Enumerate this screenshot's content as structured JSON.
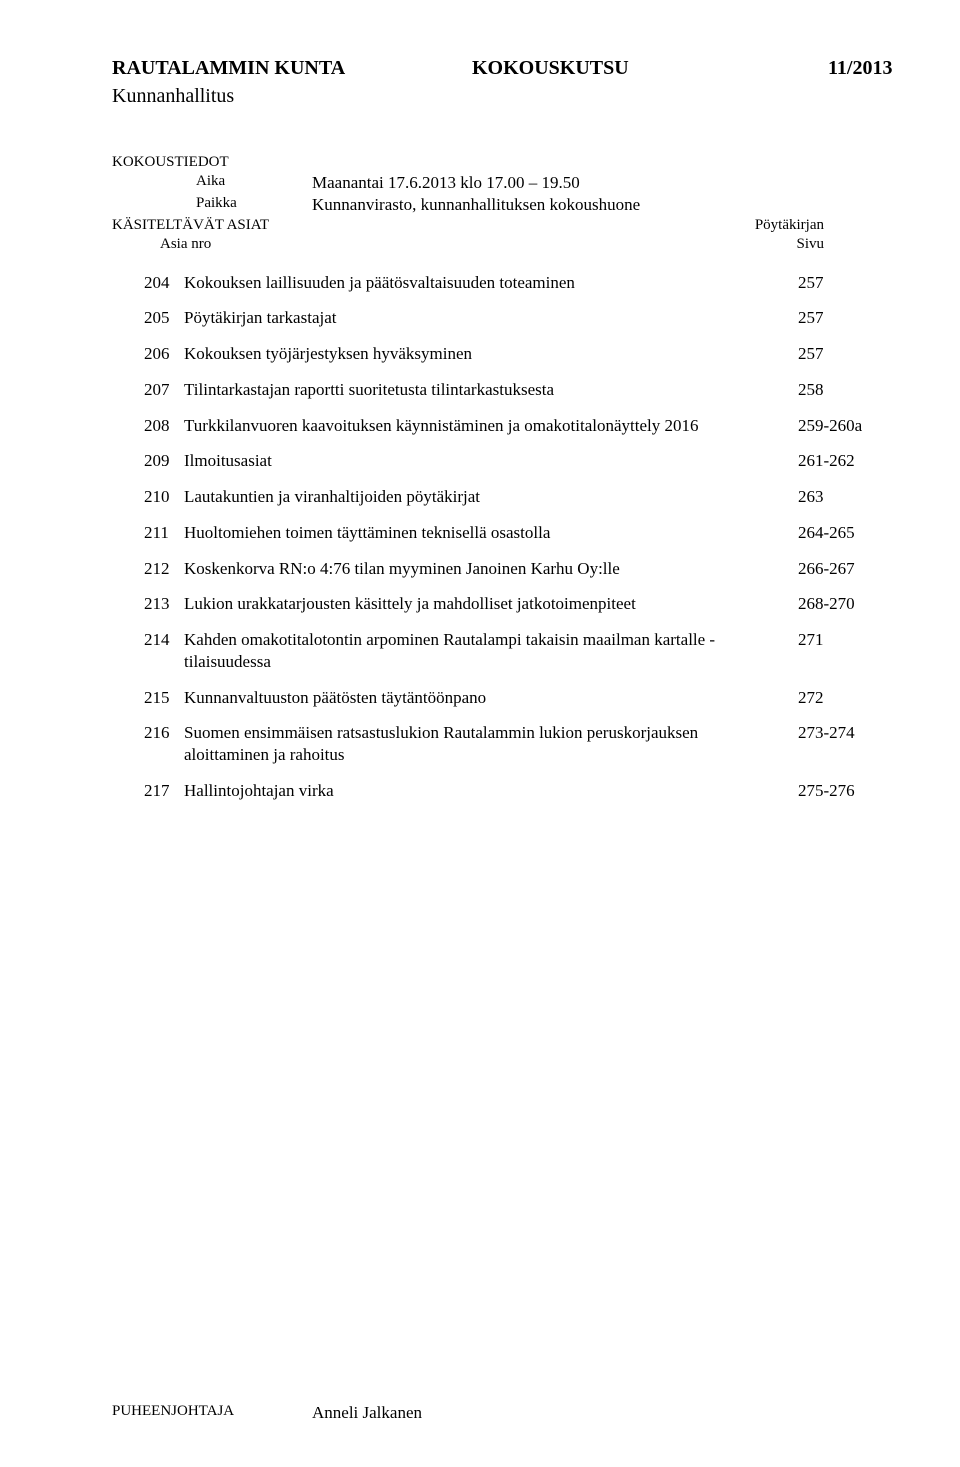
{
  "header": {
    "org": "RAUTALAMMIN KUNTA",
    "docType": "KOKOUSKUTSU",
    "docNumber": "11/2013",
    "subOrg": "Kunnanhallitus"
  },
  "meta": {
    "kokoustiedot_label": "KOKOUSTIEDOT",
    "aika_label": "Aika",
    "aika_value": "Maanantai 17.6.2013 klo 17.00 – 19.50",
    "paikka_label": "Paikka",
    "paikka_value": "Kunnanvirasto, kunnanhallituksen kokoushuone",
    "proc_label": "KÄSITELTÄVÄT ASIAT",
    "asia_nro_label": "Asia nro",
    "poytakirja_label_1": "Pöytäkirjan",
    "poytakirja_label_2": "Sivu"
  },
  "agenda": [
    {
      "num": "204",
      "text": "Kokouksen laillisuuden ja päätösvaltaisuuden toteaminen",
      "page": "257"
    },
    {
      "num": "205",
      "text": "Pöytäkirjan tarkastajat",
      "page": "257"
    },
    {
      "num": "206",
      "text": "Kokouksen työjärjestyksen hyväksyminen",
      "page": "257"
    },
    {
      "num": "207",
      "text": "Tilintarkastajan raportti suoritetusta tilintarkastuksesta",
      "page": "258"
    },
    {
      "num": "208",
      "text": "Turkkilanvuoren kaavoituksen käynnistäminen ja omakotitalonäyttely 2016",
      "page": "259-260a"
    },
    {
      "num": "209",
      "text": "Ilmoitusasiat",
      "page": "261-262"
    },
    {
      "num": "210",
      "text": "Lautakuntien ja viranhaltijoiden pöytäkirjat",
      "page": "263"
    },
    {
      "num": "211",
      "text": "Huoltomiehen toimen täyttäminen teknisellä osastolla",
      "page": "264-265"
    },
    {
      "num": "212",
      "text": "Koskenkorva RN:o 4:76 tilan myyminen Janoinen Karhu Oy:lle",
      "page": "266-267"
    },
    {
      "num": "213",
      "text": "Lukion urakkatarjousten käsittely ja mahdolliset jatkotoimenpiteet",
      "page": "268-270"
    },
    {
      "num": "214",
      "text": "Kahden omakotitalotontin arpominen Rautalampi takaisin maailman kartalle -tilaisuudessa",
      "page": "271"
    },
    {
      "num": "215",
      "text": "Kunnanvaltuuston päätösten täytäntöönpano",
      "page": "272"
    },
    {
      "num": "216",
      "text": "Suomen ensimmäisen ratsastuslukion Rautalammin lukion peruskorjauksen aloittaminen ja rahoitus",
      "page": "273-274"
    },
    {
      "num": "217",
      "text": "Hallintojohtajan virka",
      "page": "275-276"
    }
  ],
  "footer": {
    "label": "PUHEENJOHTAJA",
    "name": "Anneli Jalkanen"
  }
}
